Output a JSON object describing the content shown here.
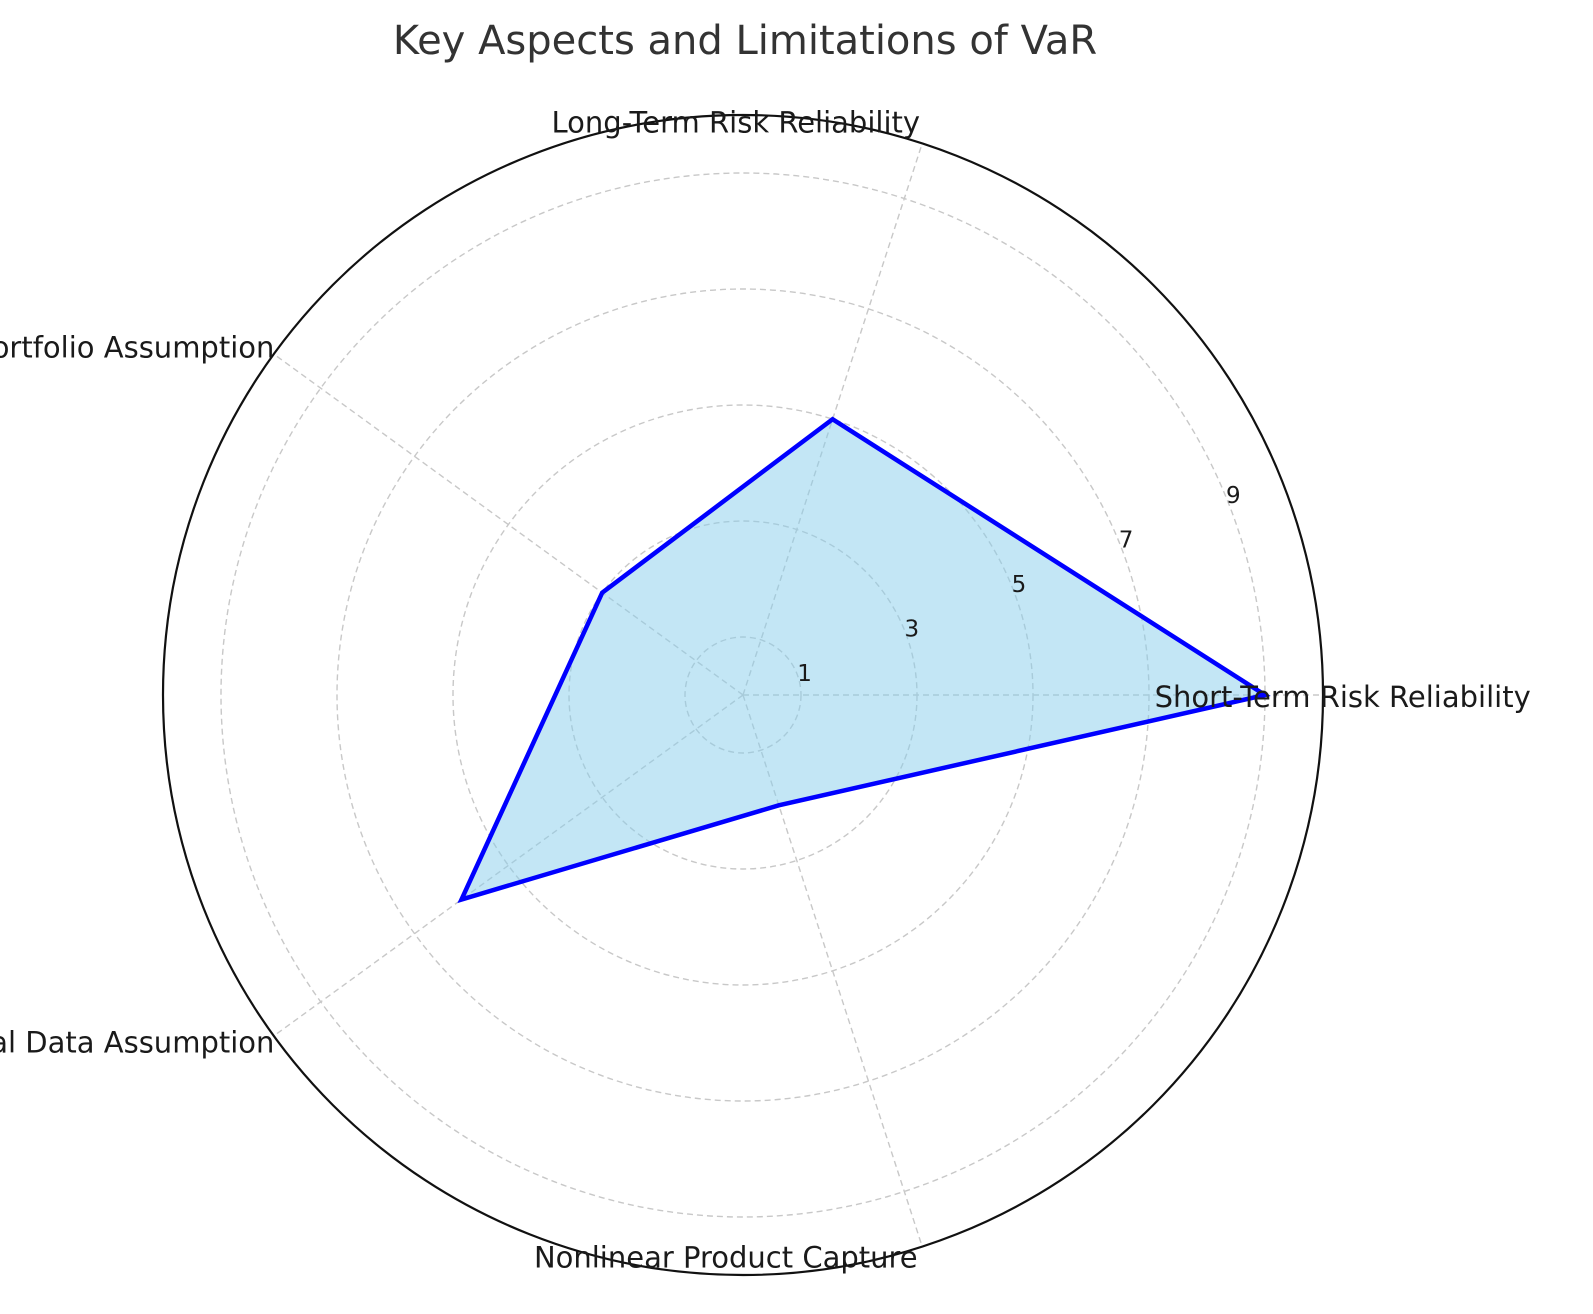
{
  "chart_data": {
    "type": "radar",
    "title": "Key Aspects and Limitations of VaR",
    "categories": [
      "Short-Term Risk Reliability",
      "Long-Term Risk Reliability",
      "Static Portfolio Assumption",
      "Historical Data Assumption",
      "Nonlinear Product Capture"
    ],
    "series": [
      {
        "values": [
          9,
          5,
          3,
          6,
          2
        ]
      }
    ],
    "rlim": [
      0,
      10
    ],
    "rticks": [
      1,
      3,
      5,
      7,
      9
    ],
    "grid": true,
    "colors": {
      "line": "#0000ff",
      "fill": "#87ceeb",
      "grid": "#c8c8c8",
      "frame": "#111111"
    }
  }
}
